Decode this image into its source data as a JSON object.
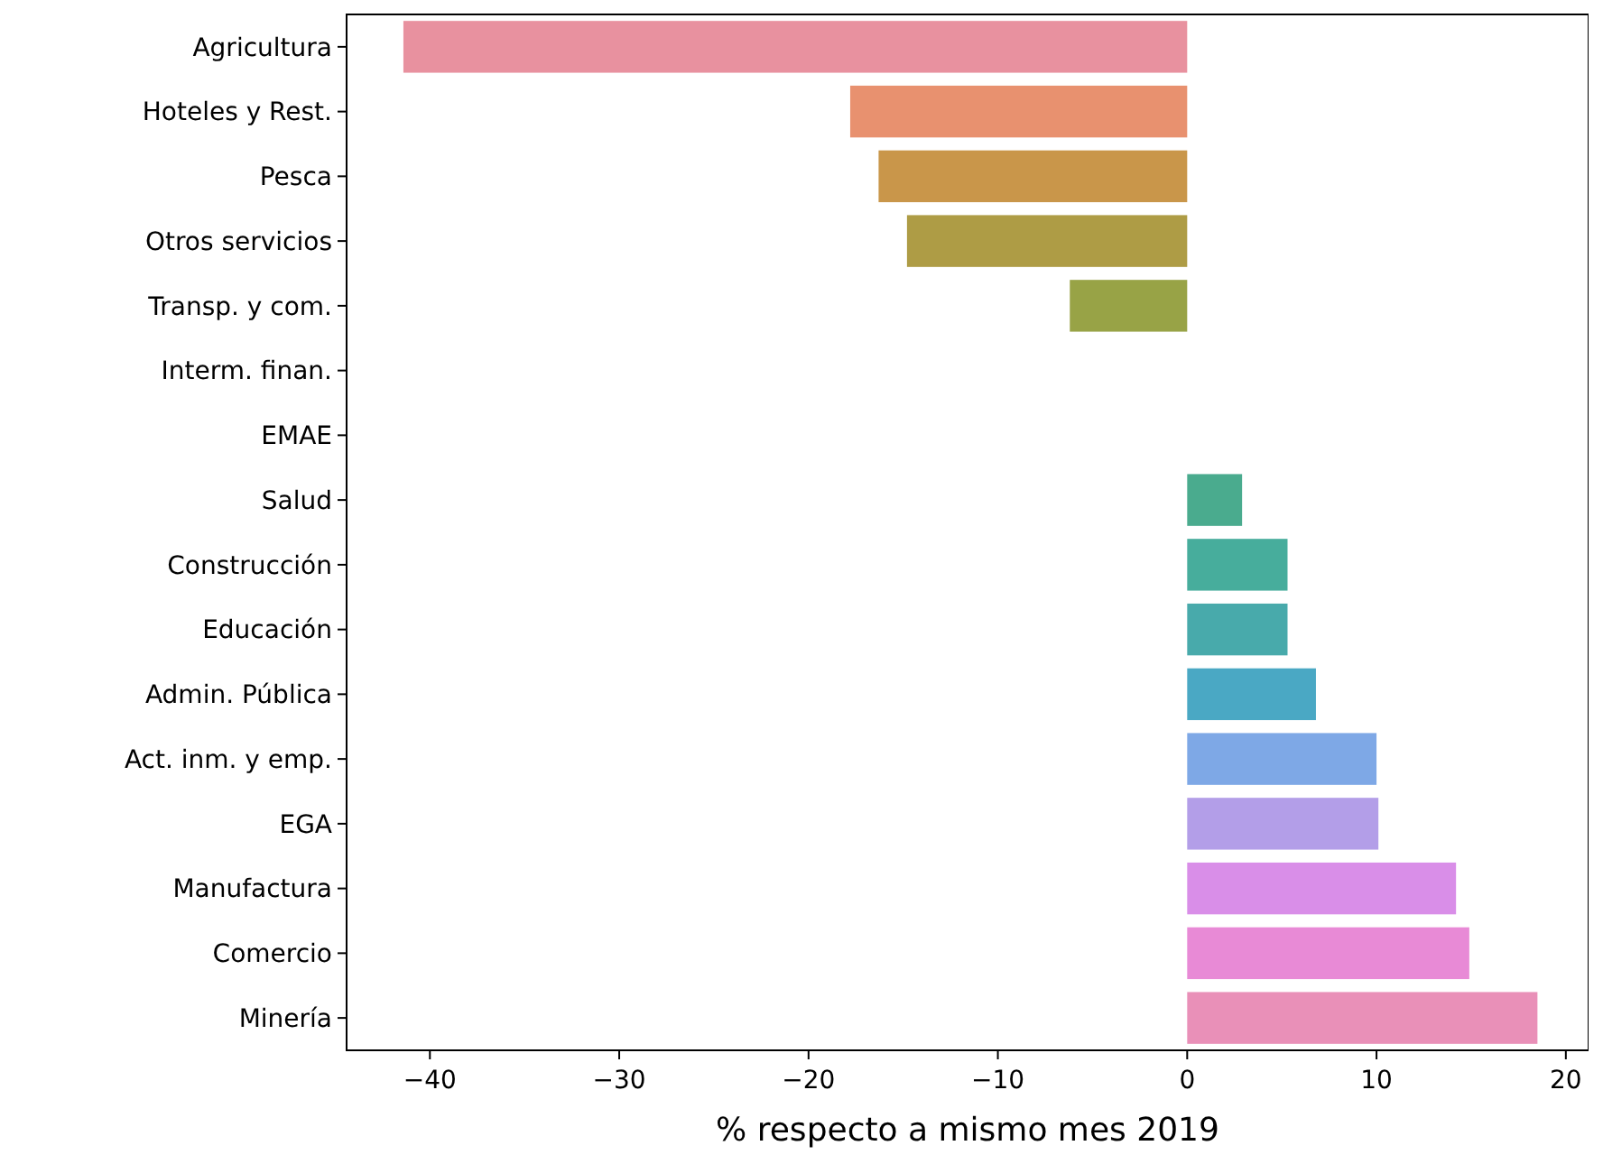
{
  "chart_data": {
    "type": "bar",
    "orientation": "horizontal",
    "xlabel": "% respecto a mismo mes 2019",
    "categories": [
      "Agricultura",
      "Hoteles y Rest.",
      "Pesca",
      "Otros servicios",
      "Transp. y com.",
      "Interm. finan.",
      "EMAE",
      "Salud",
      "Construcción",
      "Educación",
      "Admin. Pública",
      "Act. inm. y emp.",
      "EGA",
      "Manufactura",
      "Comercio",
      "Minería"
    ],
    "values": [
      -41.4,
      -17.8,
      -16.3,
      -14.8,
      -6.2,
      0,
      0,
      2.9,
      5.3,
      5.3,
      6.8,
      10.0,
      10.1,
      14.2,
      14.9,
      18.5
    ],
    "colors": [
      "#e8919f",
      "#e8916f",
      "#c9964a",
      "#ae9c45",
      "#98a346",
      "#77a846",
      "#4aab7a",
      "#4aab8e",
      "#47ad9c",
      "#48aaab",
      "#4aa8c4",
      "#7ea8e6",
      "#b39ee8",
      "#d98ee8",
      "#e88ad6",
      "#e990b8"
    ],
    "xlim": [
      -44.4,
      21.2
    ],
    "xticks": [
      -40,
      -30,
      -20,
      -10,
      0,
      10,
      20
    ],
    "grid": false
  }
}
